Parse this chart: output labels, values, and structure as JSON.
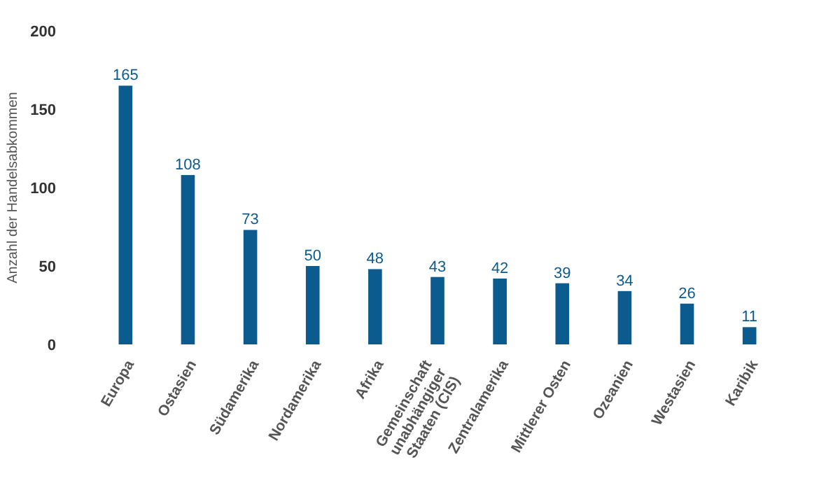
{
  "chart_data": {
    "type": "bar",
    "ylabel": "Anzahl der Handelsabkommen",
    "categories": [
      "Europa",
      "Ostasien",
      "Südamerika",
      "Nordamerika",
      "Afrika",
      "Gemeinschaft unabhängiger Staaten (CIS)",
      "Zentralamerika",
      "Mittlerer Osten",
      "Ozeanien",
      "Westasien",
      "Karibik"
    ],
    "values": [
      165,
      108,
      73,
      50,
      48,
      43,
      42,
      39,
      34,
      26,
      11
    ],
    "color": "#0b5b8e",
    "ylim": [
      0,
      200
    ],
    "yticks": [
      0,
      50,
      100,
      150,
      200
    ],
    "grid": false,
    "data_labels": true
  }
}
